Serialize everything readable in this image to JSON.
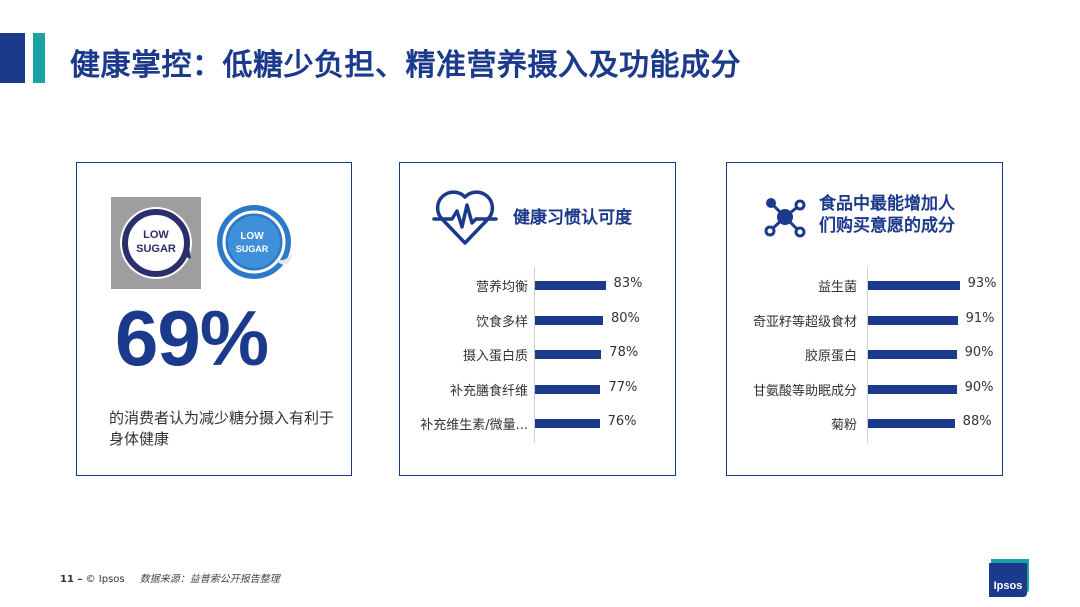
{
  "header": {
    "title": "健康掌控：低糖少负担、精准营养摄入及功能成分"
  },
  "card1": {
    "badge_text": [
      "LOW",
      "SUGAR"
    ],
    "percent": "69%",
    "description": "的消费者认为减少糖分摄入有利于身体健康"
  },
  "card2": {
    "icon": "heart-pulse-icon",
    "title": "健康习惯认可度",
    "chart_data": {
      "type": "bar",
      "orientation": "horizontal",
      "title": "健康习惯认可度",
      "categories": [
        "营养均衡",
        "饮食多样",
        "摄入蛋白质",
        "补充膳食纤维",
        "补充维生素/微量..."
      ],
      "values": [
        83,
        80,
        78,
        77,
        76
      ],
      "value_labels": [
        "83%",
        "80%",
        "78%",
        "77%",
        "76%"
      ],
      "xlim": [
        0,
        100
      ]
    }
  },
  "card3": {
    "icon": "molecule-icon",
    "title_line1": "食品中最能增加人",
    "title_line2": "们购买意愿的成分",
    "chart_data": {
      "type": "bar",
      "orientation": "horizontal",
      "title": "食品中最能增加人们购买意愿的成分",
      "categories": [
        "益生菌",
        "奇亚籽等超级食材",
        "胶原蛋白",
        "甘氨酸等助眠成分",
        "菊粉"
      ],
      "values": [
        93,
        91,
        90,
        90,
        88
      ],
      "value_labels": [
        "93%",
        "91%",
        "90%",
        "90%",
        "88%"
      ],
      "xlim": [
        0,
        100
      ]
    }
  },
  "footer": {
    "page": "11 –",
    "copyright": "© Ipsos",
    "source": "数据来源：益普索公开报告整理"
  },
  "logo": {
    "text": "Ipsos"
  },
  "colors": {
    "brand_blue": "#1c3a8c",
    "teal": "#1aa3a3",
    "bar": "#1c3a8c"
  }
}
